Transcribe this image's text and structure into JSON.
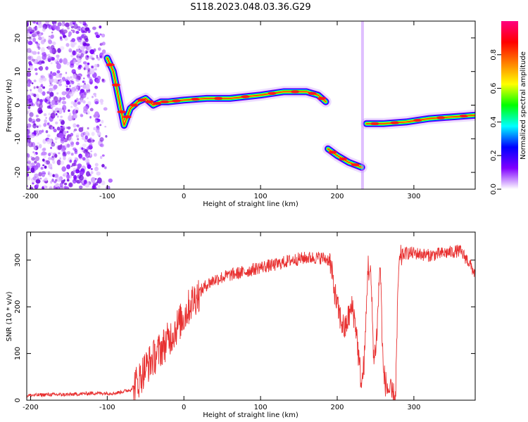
{
  "title": "S118.2023.048.03.36.G29",
  "chart_data": [
    {
      "type": "heatmap",
      "xlabel": "Height of straight line (km)",
      "ylabel": "Frequency (Hz)",
      "xlim": [
        -205,
        380
      ],
      "ylim": [
        -25,
        25
      ],
      "xticks": [
        -200,
        -100,
        0,
        100,
        200,
        300
      ],
      "yticks": [
        -20,
        -10,
        0,
        10,
        20
      ],
      "colorbar": {
        "label": "Normalized spectral amplitude",
        "range": [
          0,
          1
        ],
        "ticks": [
          "0.0",
          "0.2",
          "0.4",
          "0.6",
          "0.8"
        ],
        "colors": [
          "#ffffff",
          "#8000ff",
          "#0000ff",
          "#00ffff",
          "#00ff00",
          "#ffff00",
          "#ff8000",
          "#ff0000",
          "#ff0080"
        ]
      },
      "noise_region": {
        "x": [
          -205,
          -95
        ],
        "y": [
          -25,
          25
        ]
      },
      "trace": [
        {
          "x": -100,
          "y": 14
        },
        {
          "x": -92,
          "y": 10
        },
        {
          "x": -85,
          "y": 2
        },
        {
          "x": -78,
          "y": -6
        },
        {
          "x": -70,
          "y": -1
        },
        {
          "x": -60,
          "y": 1
        },
        {
          "x": -50,
          "y": 2
        },
        {
          "x": -40,
          "y": 0
        },
        {
          "x": -30,
          "y": 1
        },
        {
          "x": -20,
          "y": 1
        },
        {
          "x": 0,
          "y": 1.5
        },
        {
          "x": 30,
          "y": 2
        },
        {
          "x": 60,
          "y": 2
        },
        {
          "x": 100,
          "y": 3
        },
        {
          "x": 130,
          "y": 4
        },
        {
          "x": 160,
          "y": 4
        },
        {
          "x": 175,
          "y": 3
        },
        {
          "x": 185,
          "y": 1
        }
      ],
      "trace2": [
        {
          "x": 188,
          "y": -13
        },
        {
          "x": 200,
          "y": -15
        },
        {
          "x": 215,
          "y": -17
        },
        {
          "x": 232,
          "y": -18.5
        }
      ],
      "trace3": [
        {
          "x": 238,
          "y": -5.5
        },
        {
          "x": 260,
          "y": -5.5
        },
        {
          "x": 290,
          "y": -5
        },
        {
          "x": 320,
          "y": -4
        },
        {
          "x": 350,
          "y": -3.5
        },
        {
          "x": 380,
          "y": -3
        }
      ]
    },
    {
      "type": "line",
      "xlabel": "Height of straight line (km)",
      "ylabel": "SNR (10 * v/v)",
      "xlim": [
        -205,
        380
      ],
      "ylim": [
        0,
        360
      ],
      "xticks": [
        -200,
        -100,
        0,
        100,
        200,
        300
      ],
      "yticks": [
        0,
        100,
        200,
        300
      ],
      "color": "#e83030",
      "x": [
        -205,
        -180,
        -150,
        -120,
        -90,
        -70,
        -60,
        -50,
        -40,
        -30,
        -20,
        -10,
        0,
        10,
        20,
        30,
        40,
        60,
        80,
        100,
        120,
        140,
        160,
        180,
        190,
        195,
        200,
        205,
        210,
        215,
        220,
        225,
        228,
        232,
        236,
        240,
        244,
        248,
        252,
        256,
        260,
        264,
        268,
        272,
        276,
        280,
        284,
        290,
        300,
        320,
        340,
        360,
        370,
        380
      ],
      "y": [
        10,
        12,
        12,
        15,
        15,
        22,
        40,
        70,
        90,
        110,
        130,
        155,
        180,
        210,
        230,
        248,
        258,
        268,
        275,
        285,
        290,
        300,
        305,
        305,
        300,
        250,
        200,
        170,
        150,
        180,
        200,
        150,
        90,
        30,
        100,
        290,
        260,
        80,
        150,
        300,
        60,
        30,
        20,
        10,
        5,
        280,
        310,
        315,
        315,
        310,
        315,
        320,
        300,
        270
      ]
    }
  ]
}
